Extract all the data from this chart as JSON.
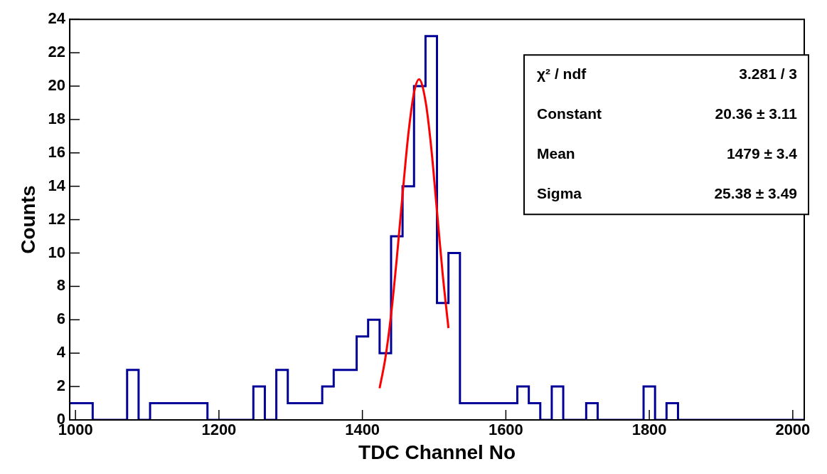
{
  "chart_data": {
    "type": "histogram",
    "xlabel": "TDC Channel No",
    "ylabel": "Counts",
    "bins": [
      992,
      1008,
      1024,
      1040,
      1056,
      1072,
      1088,
      1104,
      1120,
      1136,
      1152,
      1168,
      1184,
      1200,
      1216,
      1232,
      1248,
      1264,
      1280,
      1296,
      1312,
      1328,
      1344,
      1360,
      1376,
      1392,
      1408,
      1424,
      1440,
      1456,
      1472,
      1488,
      1504,
      1520,
      1536,
      1552,
      1568,
      1584,
      1600,
      1616,
      1632,
      1648,
      1664,
      1680,
      1696,
      1712,
      1728,
      1744,
      1760,
      1776,
      1792,
      1808,
      1824,
      1840,
      1856,
      1872,
      1888,
      1904,
      1920,
      1936,
      1952,
      1968,
      1984,
      2000,
      2016
    ],
    "values": [
      1,
      1,
      0,
      0,
      0,
      3,
      0,
      1,
      1,
      1,
      1,
      1,
      0,
      0,
      0,
      0,
      2,
      0,
      3,
      1,
      1,
      1,
      2,
      3,
      3,
      5,
      6,
      4,
      11,
      14,
      20,
      23,
      7,
      10,
      1,
      1,
      1,
      1,
      1,
      2,
      1,
      0,
      2,
      0,
      0,
      1,
      0,
      0,
      0,
      0,
      2,
      0,
      1,
      0,
      0,
      0,
      0,
      0,
      0,
      0,
      0,
      0,
      0,
      0
    ],
    "color": "#000099",
    "series": [
      {
        "type": "line",
        "x": [
          1424,
          1432,
          1440,
          1448,
          1456,
          1464,
          1472,
          1479,
          1488,
          1496,
          1504,
          1512,
          1520
        ],
        "values": [
          1.9,
          3.7,
          6.3,
          9.7,
          13.5,
          17.1,
          19.6,
          20.4,
          19.1,
          16.3,
          12.5,
          8.7,
          5.5
        ],
        "color": "#ff0000"
      }
    ],
    "xlim": [
      992,
      2016
    ],
    "xticks": [
      1000,
      1200,
      1400,
      1600,
      1800,
      2000
    ],
    "ylim": [
      0,
      24
    ],
    "yticks": [
      0,
      2,
      4,
      6,
      8,
      10,
      12,
      14,
      16,
      18,
      20,
      22,
      24
    ],
    "annotations": [
      "χ² / ndf",
      "3.281 / 3",
      "Constant",
      "20.36 ± 3.11",
      "Mean",
      "1479 ± 3.4",
      "Sigma",
      "25.38 ± 3.49"
    ]
  }
}
